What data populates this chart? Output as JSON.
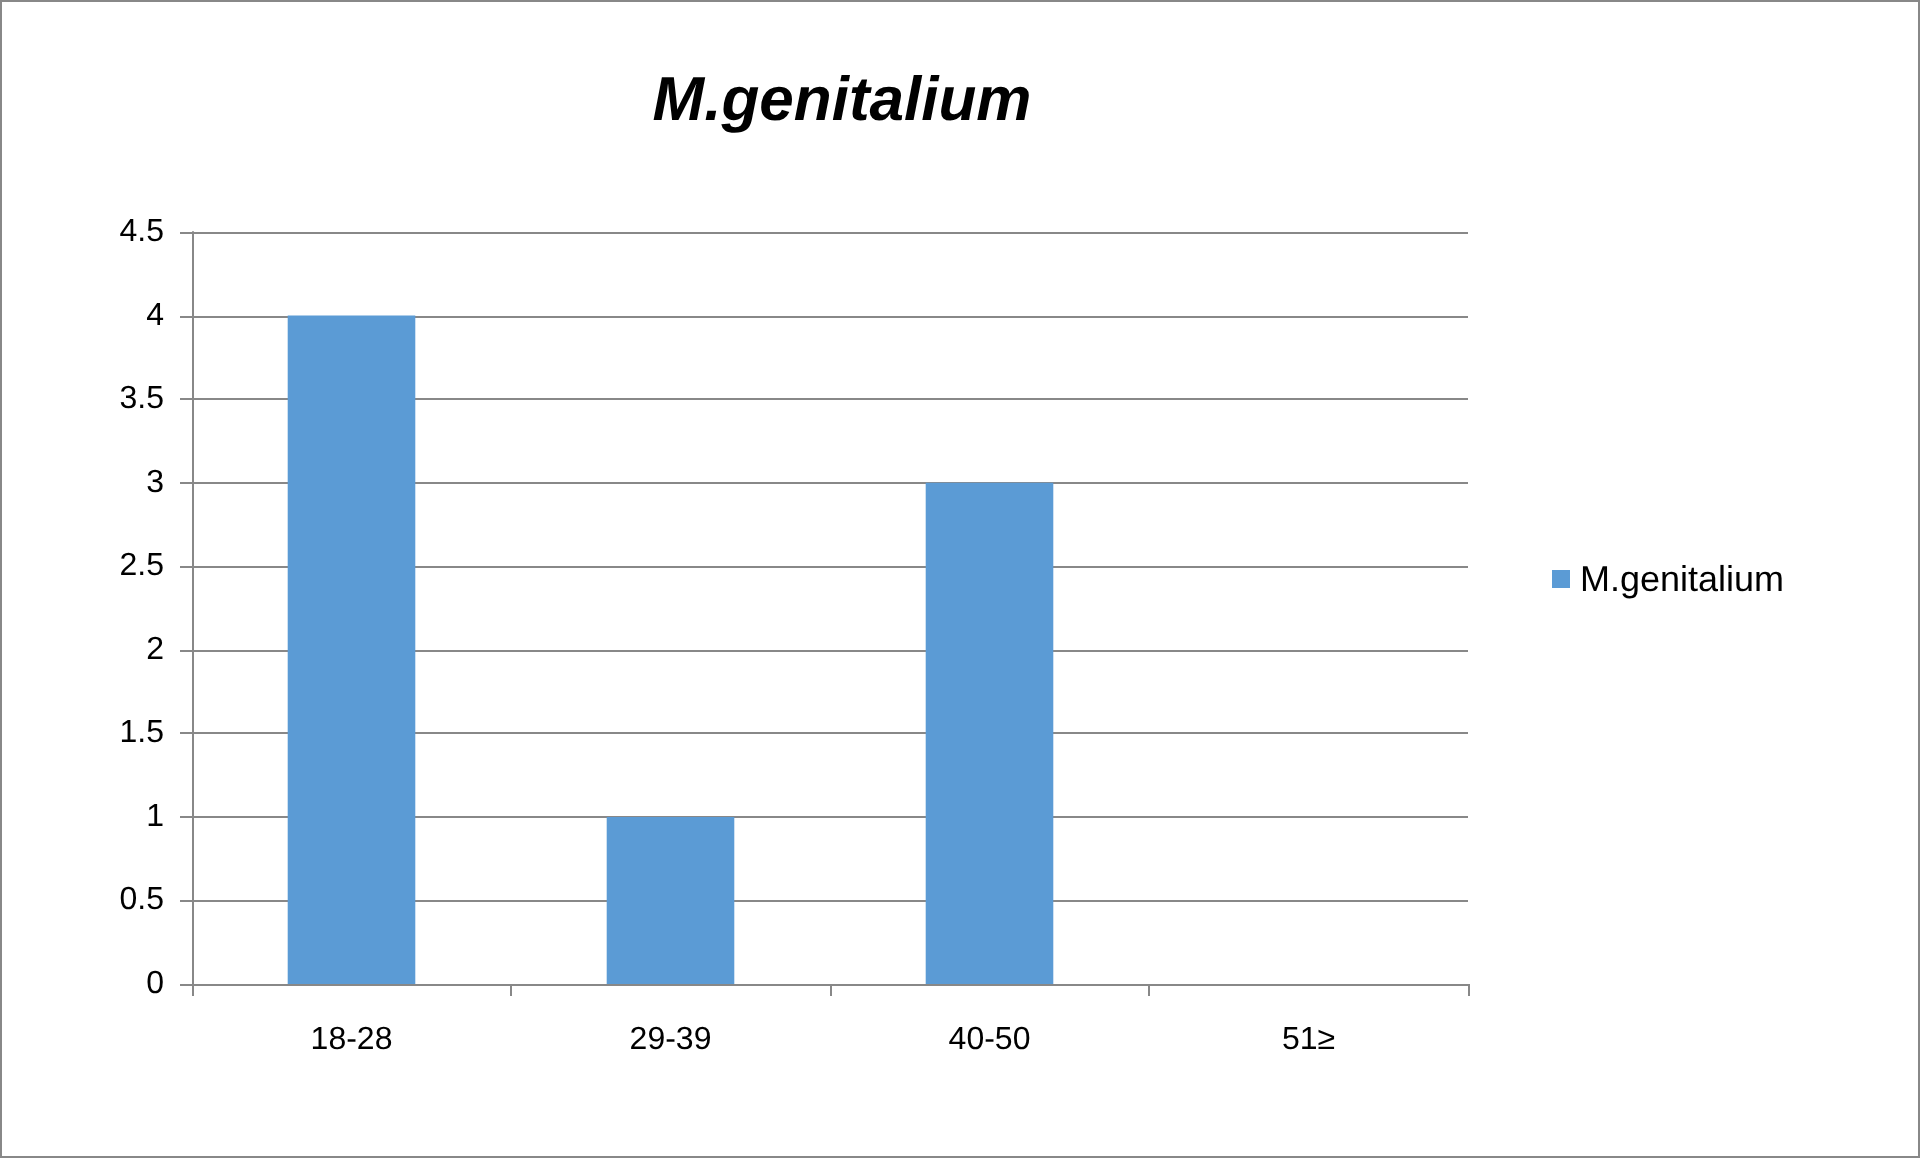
{
  "chart_data": {
    "type": "bar",
    "title": "M.genitalium",
    "categories": [
      "18-28",
      "29-39",
      "40-50",
      "51≥"
    ],
    "series": [
      {
        "name": "M.genitalium",
        "color": "#5b9bd5",
        "values": [
          4,
          1,
          3,
          0
        ]
      }
    ],
    "ylim": [
      0,
      4.5
    ],
    "yticks": [
      0,
      0.5,
      1,
      1.5,
      2,
      2.5,
      3,
      3.5,
      4,
      4.5
    ],
    "grid": "y",
    "legend": "right"
  }
}
